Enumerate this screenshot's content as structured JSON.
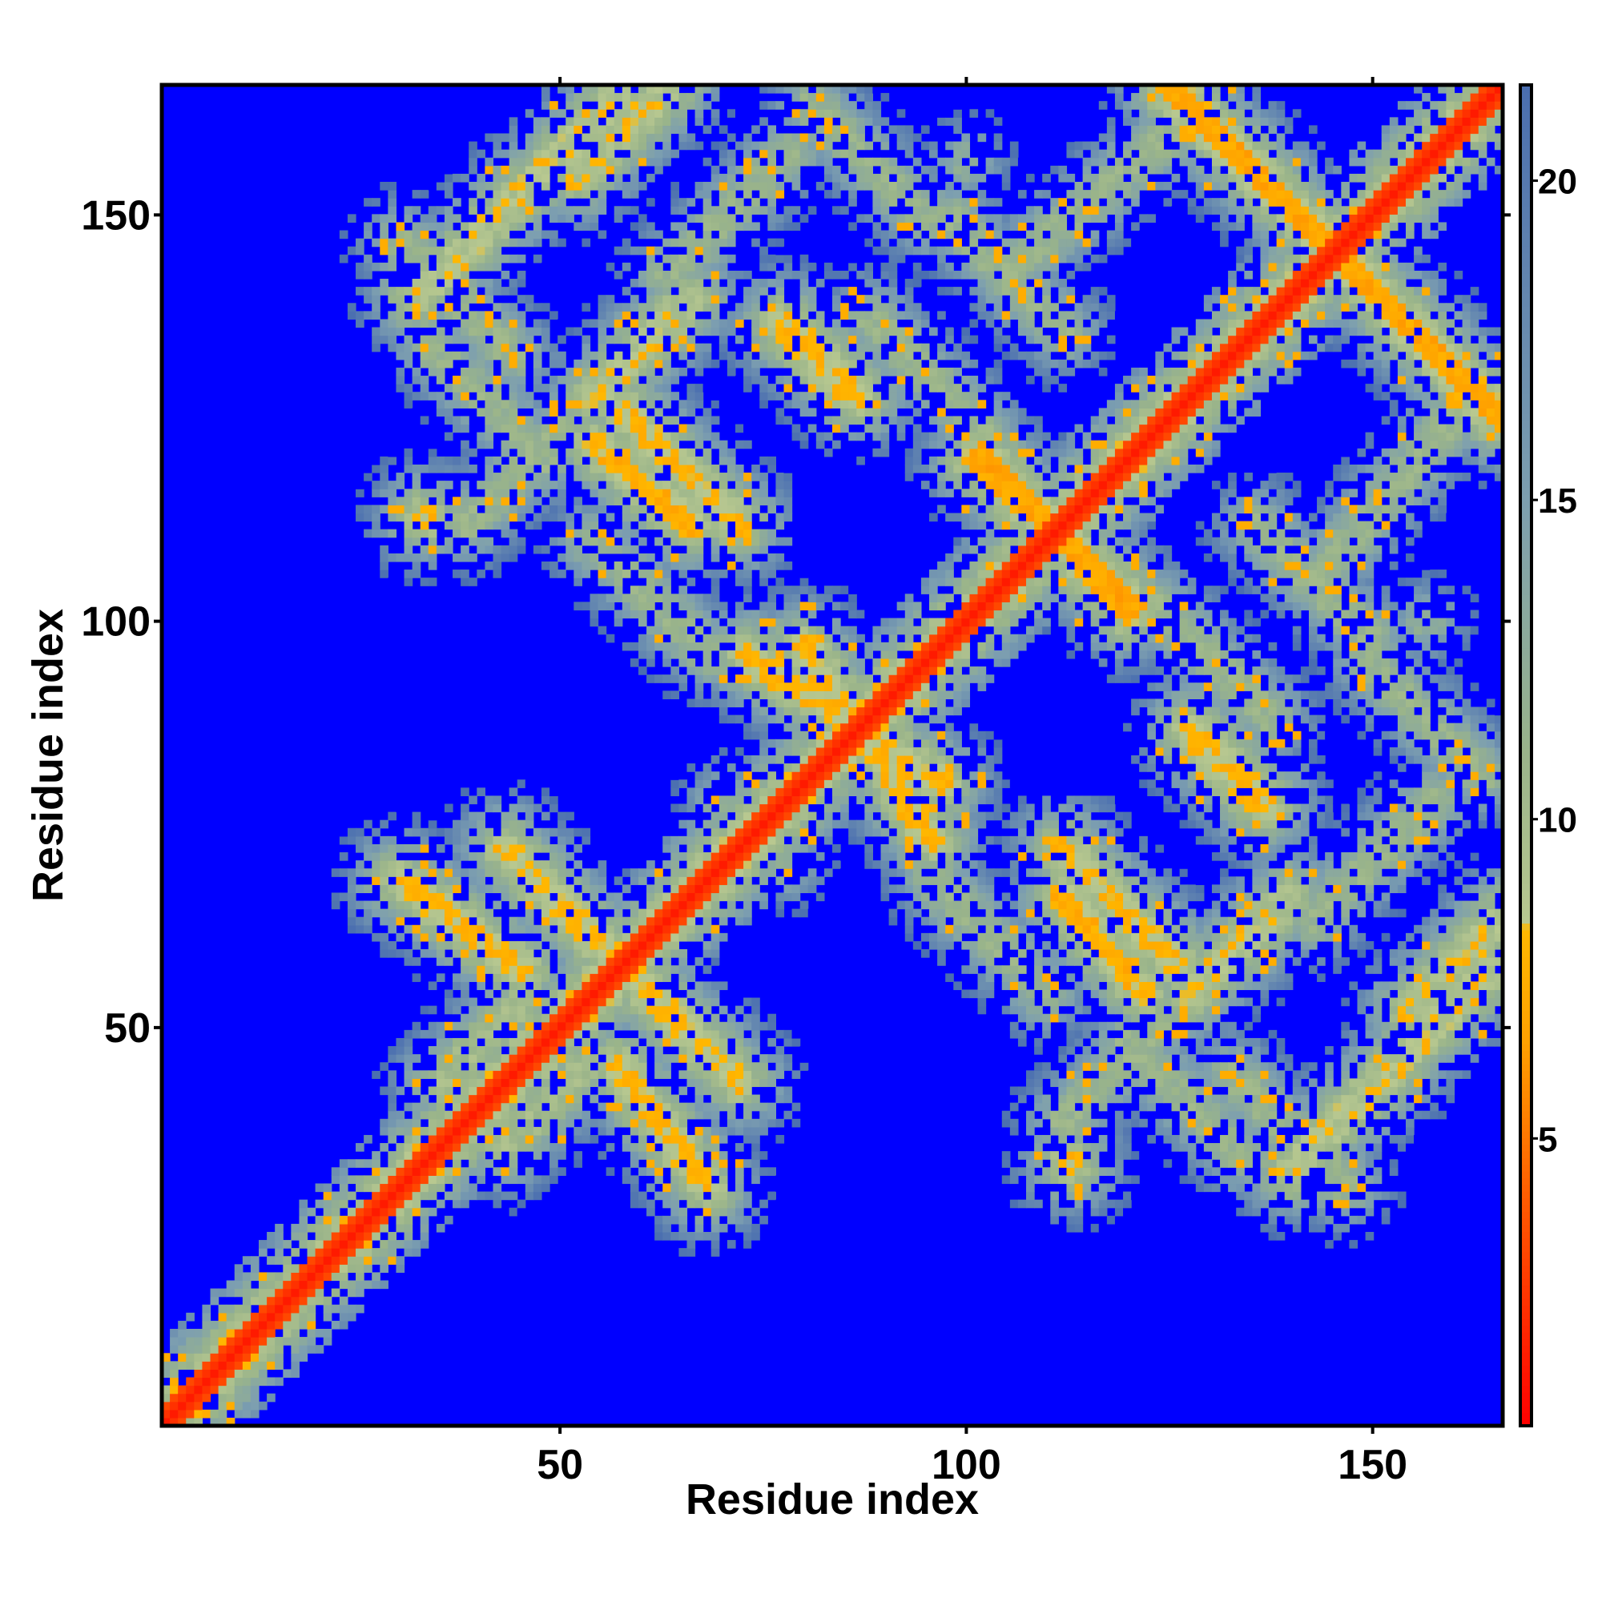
{
  "chart_data": {
    "type": "heatmap",
    "title": "",
    "xlabel": "Residue index",
    "ylabel": "Residue index",
    "xlim": [
      1,
      166
    ],
    "ylim": [
      1,
      166
    ],
    "xticks": [
      50,
      100,
      150
    ],
    "yticks": [
      50,
      100,
      150
    ],
    "n_residues": 166,
    "colorbar": {
      "range": [
        0.5,
        21.5
      ],
      "ticks": [
        5,
        10,
        15,
        20
      ],
      "stops": [
        {
          "value": 0.5,
          "color": "#ff0000"
        },
        {
          "value": 4.0,
          "color": "#ff5a00"
        },
        {
          "value": 6.5,
          "color": "#ffa000"
        },
        {
          "value": 8.3,
          "color": "#ffb800"
        },
        {
          "value": 8.4,
          "color": "#b8c890"
        },
        {
          "value": 11.0,
          "color": "#9ab48a"
        },
        {
          "value": 15.0,
          "color": "#7d9fb0"
        },
        {
          "value": 21.5,
          "color": "#4a6eb0"
        }
      ]
    },
    "background": {
      "value": 22,
      "color": "#0000ff"
    },
    "description": "Symmetric residue contact distance map: low-distance main diagonal plus anti-diagonal (antiparallel) and parallel contact bands",
    "diagonal": {
      "value": 1.5,
      "halfwidth": 2.2
    },
    "contact_bands": [
      {
        "kind": "anti",
        "x": [
          43,
          64
        ],
        "y": [
          72,
          51
        ],
        "value": 8,
        "halfwidth": 4.5
      },
      {
        "kind": "anti",
        "x": [
          57,
          68
        ],
        "y": [
          45,
          30
        ],
        "value": 8,
        "halfwidth": 4.5
      },
      {
        "kind": "anti",
        "x": [
          73,
          97
        ],
        "y": [
          96,
          80
        ],
        "value": 8,
        "halfwidth": 4.5
      },
      {
        "kind": "anti",
        "x": [
          101,
          121
        ],
        "y": [
          120,
          102
        ],
        "value": 7,
        "halfwidth": 4.5
      },
      {
        "kind": "anti",
        "x": [
          127,
          166
        ],
        "y": [
          165,
          125
        ],
        "value": 7,
        "halfwidth": 4.5
      },
      {
        "kind": "anti",
        "x": [
          54,
          66
        ],
        "y": [
          122,
          112
        ],
        "value": 7.5,
        "halfwidth": 4.5
      },
      {
        "kind": "anti",
        "x": [
          77,
          86
        ],
        "y": [
          137,
          128
        ],
        "value": 8,
        "halfwidth": 4.5
      },
      {
        "kind": "anti",
        "x": [
          112,
          126
        ],
        "y": [
          72,
          58
        ],
        "value": 8,
        "halfwidth": 4.5
      },
      {
        "kind": "anti",
        "x": [
          128,
          137
        ],
        "y": [
          87,
          78
        ],
        "value": 8,
        "halfwidth": 4.5
      },
      {
        "kind": "anti",
        "x": [
          30,
          44
        ],
        "y": [
          147,
          133
        ],
        "value": 11,
        "halfwidth": 4.5
      },
      {
        "kind": "anti",
        "x": [
          88,
          102
        ],
        "y": [
          138,
          124
        ],
        "value": 11,
        "halfwidth": 4.5
      },
      {
        "kind": "anti",
        "x": [
          136,
          150
        ],
        "y": [
          112,
          98
        ],
        "value": 11,
        "halfwidth": 4.5
      },
      {
        "kind": "anti",
        "x": [
          120,
          134
        ],
        "y": [
          48,
          34
        ],
        "value": 11,
        "halfwidth": 4.5
      },
      {
        "kind": "anti",
        "x": [
          150,
          164
        ],
        "y": [
          95,
          81
        ],
        "value": 11,
        "halfwidth": 4.5
      },
      {
        "kind": "anti",
        "x": [
          96,
          110
        ],
        "y": [
          68,
          54
        ],
        "value": 11,
        "halfwidth": 4.5
      },
      {
        "kind": "par",
        "x": [
          52,
          64
        ],
        "y": [
          155,
          167
        ],
        "value": 9,
        "halfwidth": 4.5
      },
      {
        "kind": "par",
        "x": [
          63,
          78
        ],
        "y": [
          143,
          158
        ],
        "value": 11,
        "halfwidth": 4.5
      },
      {
        "kind": "par",
        "x": [
          107,
          125
        ],
        "y": [
          145,
          160
        ],
        "value": 11,
        "halfwidth": 4.5
      },
      {
        "kind": "par",
        "x": [
          38,
          52
        ],
        "y": [
          112,
          126
        ],
        "value": 11,
        "halfwidth": 4.5
      },
      {
        "kind": "par",
        "x": [
          140,
          165
        ],
        "y": [
          32,
          57
        ],
        "value": 9,
        "halfwidth": 4.5
      },
      {
        "kind": "par",
        "x": [
          128,
          140
        ],
        "y": [
          54,
          66
        ],
        "value": 9,
        "halfwidth": 4.5
      },
      {
        "kind": "par",
        "x": [
          35,
          45
        ],
        "y": [
          43,
          53
        ],
        "value": 10,
        "halfwidth": 4.5
      },
      {
        "kind": "blob",
        "x": [
          33,
          33
        ],
        "y": [
          113,
          113
        ],
        "value": 8,
        "halfwidth": 6
      },
      {
        "kind": "blob",
        "x": [
          113,
          113
        ],
        "y": [
          33,
          33
        ],
        "value": 8,
        "halfwidth": 6
      },
      {
        "kind": "blob",
        "x": [
          70,
          70
        ],
        "y": [
          78,
          78
        ],
        "value": 12,
        "halfwidth": 6
      },
      {
        "kind": "blob",
        "x": [
          157,
          157
        ],
        "y": [
          100,
          100
        ],
        "value": 12,
        "halfwidth": 7
      }
    ]
  }
}
